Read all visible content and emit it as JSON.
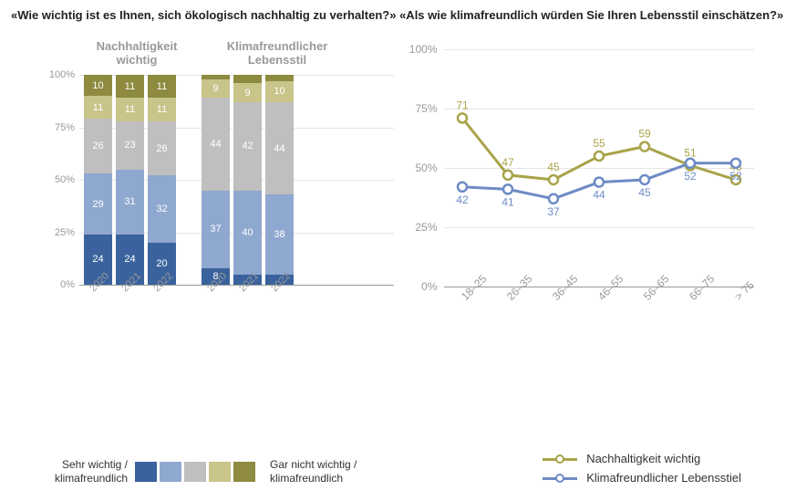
{
  "title": "«Wie wichtig ist es Ihnen, sich ökologisch nachhaltig zu verhalten?» «Als wie klimafreundlich würden Sie Ihren Lebensstil einschätzen?»",
  "colors": {
    "c1": "#3a629d",
    "c2": "#8fa8cf",
    "c3": "#bfbfbf",
    "c4": "#c9c48a",
    "c5": "#8e8a3f",
    "grid": "#e5e5e5",
    "axis": "#999999",
    "line_nach": "#a9a34a",
    "line_klima": "#6d8bc4",
    "text_muted": "#999999"
  },
  "stacked": {
    "ylim": [
      0,
      100
    ],
    "yticks": [
      0,
      25,
      50,
      75,
      100
    ],
    "ytick_labels": [
      "0%",
      "25%",
      "50%",
      "75%",
      "100%"
    ],
    "groups": [
      {
        "title_l1": "Nachhaltigkeit",
        "title_l2": "wichtig",
        "years": [
          "2020",
          "2021",
          "2022"
        ],
        "series": [
          [
            24,
            29,
            26,
            11,
            10
          ],
          [
            24,
            31,
            23,
            11,
            11
          ],
          [
            20,
            32,
            26,
            11,
            11
          ]
        ]
      },
      {
        "title_l1": "Klimafreundlicher",
        "title_l2": "Lebensstil",
        "years": [
          "2020",
          "2021",
          "2022"
        ],
        "series": [
          [
            8,
            37,
            44,
            9,
            2
          ],
          [
            5,
            40,
            42,
            9,
            4
          ],
          [
            5,
            38,
            44,
            10,
            3
          ]
        ]
      }
    ]
  },
  "legend_left": {
    "left_l1": "Sehr wichtig /",
    "left_l2": "klimafreundlich",
    "right_l1": "Gar nicht wichtig /",
    "right_l2": "klimafreundlich"
  },
  "line": {
    "ylim": [
      0,
      100
    ],
    "yticks": [
      0,
      25,
      50,
      75,
      100
    ],
    "ytick_labels": [
      "0%",
      "25%",
      "50%",
      "75%",
      "100%"
    ],
    "categories": [
      "18–25",
      "26–35",
      "36–45",
      "46–55",
      "56–65",
      "66–75",
      "> 75"
    ],
    "series": [
      {
        "name": "Nachhaltigkeit wichtig",
        "color_key": "line_nach",
        "values": [
          71,
          47,
          45,
          55,
          59,
          51,
          45
        ]
      },
      {
        "name": "Klimafreundlicher Lebensstiel",
        "color_key": "line_klima",
        "values": [
          42,
          41,
          37,
          44,
          45,
          52,
          52
        ]
      }
    ]
  },
  "legend_right": [
    {
      "label": "Nachhaltigkeit wichtig",
      "color_key": "line_nach"
    },
    {
      "label": "Klimafreundlicher Lebensstiel",
      "color_key": "line_klima"
    }
  ]
}
